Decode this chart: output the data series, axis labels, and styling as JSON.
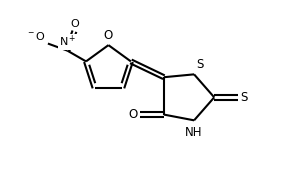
{
  "bg_color": "#ffffff",
  "line_color": "#000000",
  "lw": 1.5,
  "font_size": 8.5,
  "xlim": [
    -1.5,
    9.0
  ],
  "ylim": [
    -1.0,
    5.5
  ]
}
